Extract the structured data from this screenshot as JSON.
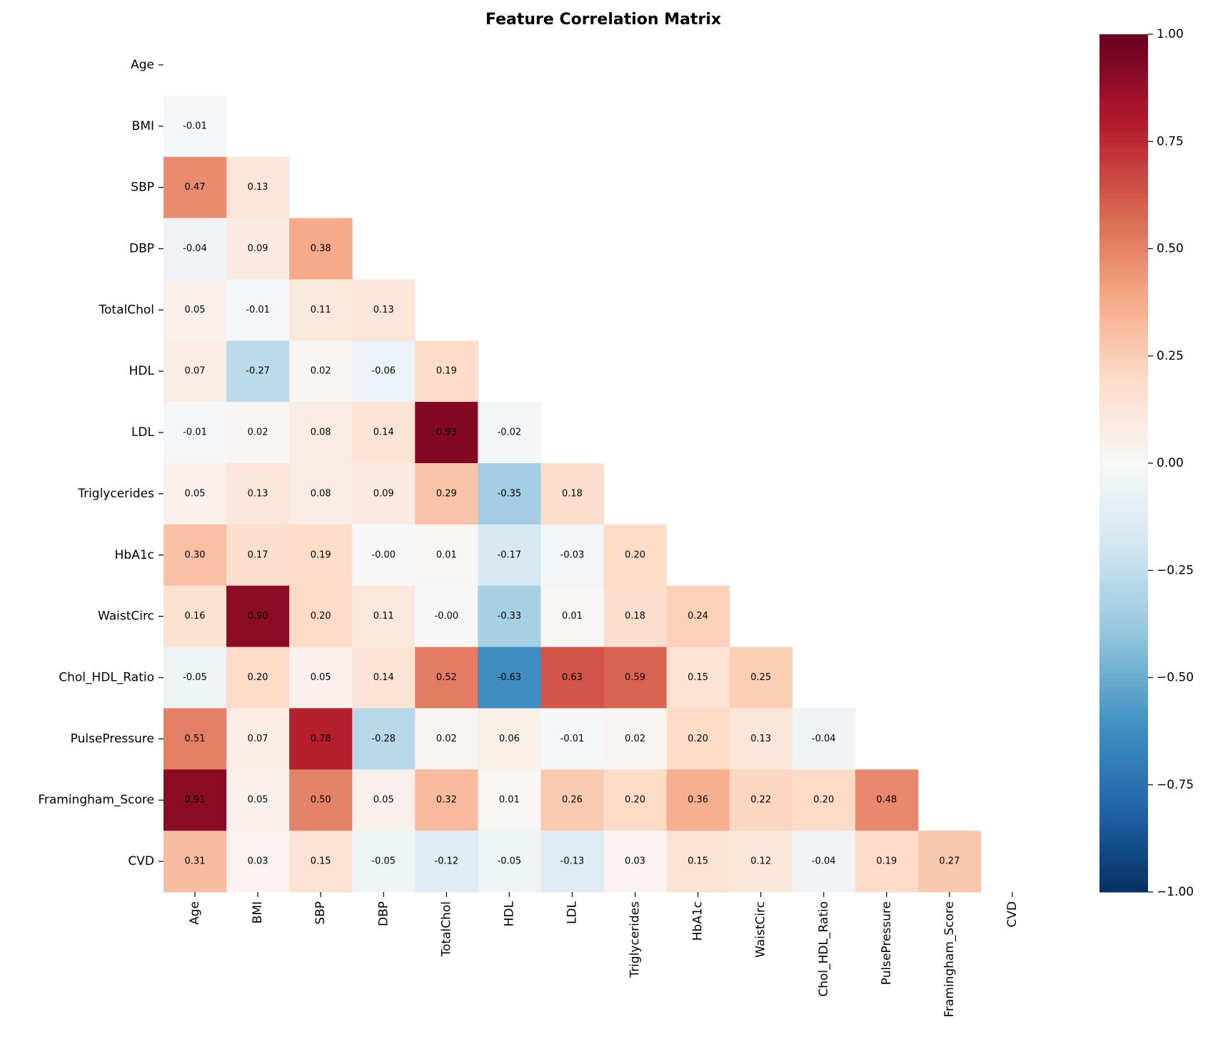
{
  "chart_data": {
    "type": "heatmap",
    "title": "Feature Correlation Matrix",
    "x": [
      "Age",
      "BMI",
      "SBP",
      "DBP",
      "TotalChol",
      "HDL",
      "LDL",
      "Triglycerides",
      "HbA1c",
      "WaistCirc",
      "Chol_HDL_Ratio",
      "PulsePressure",
      "Framingham_Score",
      "CVD"
    ],
    "y": [
      "Age",
      "BMI",
      "SBP",
      "DBP",
      "TotalChol",
      "HDL",
      "LDL",
      "Triglycerides",
      "HbA1c",
      "WaistCirc",
      "Chol_HDL_Ratio",
      "PulsePressure",
      "Framingham_Score",
      "CVD"
    ],
    "z": [
      [
        null,
        null,
        null,
        null,
        null,
        null,
        null,
        null,
        null,
        null,
        null,
        null,
        null,
        null
      ],
      [
        -0.01,
        null,
        null,
        null,
        null,
        null,
        null,
        null,
        null,
        null,
        null,
        null,
        null,
        null
      ],
      [
        0.47,
        0.13,
        null,
        null,
        null,
        null,
        null,
        null,
        null,
        null,
        null,
        null,
        null,
        null
      ],
      [
        -0.04,
        0.09,
        0.38,
        null,
        null,
        null,
        null,
        null,
        null,
        null,
        null,
        null,
        null,
        null
      ],
      [
        0.05,
        -0.01,
        0.11,
        0.13,
        null,
        null,
        null,
        null,
        null,
        null,
        null,
        null,
        null,
        null
      ],
      [
        0.07,
        -0.27,
        0.02,
        -0.06,
        0.19,
        null,
        null,
        null,
        null,
        null,
        null,
        null,
        null,
        null
      ],
      [
        -0.01,
        0.02,
        0.08,
        0.14,
        0.93,
        -0.02,
        null,
        null,
        null,
        null,
        null,
        null,
        null,
        null
      ],
      [
        0.05,
        0.13,
        0.08,
        0.09,
        0.29,
        -0.35,
        0.18,
        null,
        null,
        null,
        null,
        null,
        null,
        null
      ],
      [
        0.3,
        0.17,
        0.19,
        0,
        0.01,
        -0.17,
        -0.03,
        0.2,
        null,
        null,
        null,
        null,
        null,
        null
      ],
      [
        0.16,
        0.9,
        0.2,
        0.11,
        0,
        -0.33,
        0.01,
        0.18,
        0.24,
        null,
        null,
        null,
        null,
        null
      ],
      [
        -0.05,
        0.2,
        0.05,
        0.14,
        0.52,
        -0.63,
        0.63,
        0.59,
        0.15,
        0.25,
        null,
        null,
        null,
        null
      ],
      [
        0.51,
        0.07,
        0.78,
        -0.28,
        0.02,
        0.06,
        -0.01,
        0.02,
        0.2,
        0.13,
        -0.04,
        null,
        null,
        null
      ],
      [
        0.91,
        0.05,
        0.5,
        0.05,
        0.32,
        0.01,
        0.26,
        0.2,
        0.36,
        0.22,
        0.2,
        0.48,
        null,
        null
      ],
      [
        0.31,
        0.03,
        0.15,
        -0.05,
        -0.12,
        -0.05,
        -0.13,
        0.03,
        0.15,
        0.12,
        -0.04,
        0.19,
        0.27,
        null
      ]
    ],
    "value_labels": [
      [
        null,
        null,
        null,
        null,
        null,
        null,
        null,
        null,
        null,
        null,
        null,
        null,
        null,
        null
      ],
      [
        "-0.01",
        null,
        null,
        null,
        null,
        null,
        null,
        null,
        null,
        null,
        null,
        null,
        null,
        null
      ],
      [
        "0.47",
        "0.13",
        null,
        null,
        null,
        null,
        null,
        null,
        null,
        null,
        null,
        null,
        null,
        null
      ],
      [
        "-0.04",
        "0.09",
        "0.38",
        null,
        null,
        null,
        null,
        null,
        null,
        null,
        null,
        null,
        null,
        null
      ],
      [
        "0.05",
        "-0.01",
        "0.11",
        "0.13",
        null,
        null,
        null,
        null,
        null,
        null,
        null,
        null,
        null,
        null
      ],
      [
        "0.07",
        "-0.27",
        "0.02",
        "-0.06",
        "0.19",
        null,
        null,
        null,
        null,
        null,
        null,
        null,
        null,
        null
      ],
      [
        "-0.01",
        "0.02",
        "0.08",
        "0.14",
        "0.93",
        "-0.02",
        null,
        null,
        null,
        null,
        null,
        null,
        null,
        null
      ],
      [
        "0.05",
        "0.13",
        "0.08",
        "0.09",
        "0.29",
        "-0.35",
        "0.18",
        null,
        null,
        null,
        null,
        null,
        null,
        null
      ],
      [
        "0.30",
        "0.17",
        "0.19",
        "-0.00",
        "0.01",
        "-0.17",
        "-0.03",
        "0.20",
        null,
        null,
        null,
        null,
        null,
        null
      ],
      [
        "0.16",
        "0.90",
        "0.20",
        "0.11",
        "-0.00",
        "-0.33",
        "0.01",
        "0.18",
        "0.24",
        null,
        null,
        null,
        null,
        null
      ],
      [
        "-0.05",
        "0.20",
        "0.05",
        "0.14",
        "0.52",
        "-0.63",
        "0.63",
        "0.59",
        "0.15",
        "0.25",
        null,
        null,
        null,
        null
      ],
      [
        "0.51",
        "0.07",
        "0.78",
        "-0.28",
        "0.02",
        "0.06",
        "-0.01",
        "0.02",
        "0.20",
        "0.13",
        "-0.04",
        null,
        null,
        null
      ],
      [
        "0.91",
        "0.05",
        "0.50",
        "0.05",
        "0.32",
        "0.01",
        "0.26",
        "0.20",
        "0.36",
        "0.22",
        "0.20",
        "0.48",
        null,
        null
      ],
      [
        "0.31",
        "0.03",
        "0.15",
        "-0.05",
        "-0.12",
        "-0.05",
        "-0.13",
        "0.03",
        "0.15",
        "0.12",
        "-0.04",
        "0.19",
        "0.27",
        null
      ]
    ],
    "colormap": "RdBu_r",
    "zlim": [
      -1,
      1
    ],
    "zticks": [
      {
        "value": -1,
        "label": "−1.00"
      },
      {
        "value": -0.75,
        "label": "−0.75"
      },
      {
        "value": -0.5,
        "label": "−0.50"
      },
      {
        "value": -0.25,
        "label": "−0.25"
      },
      {
        "value": 0,
        "label": "0.00"
      },
      {
        "value": 0.25,
        "label": "0.25"
      },
      {
        "value": 0.5,
        "label": "0.50"
      },
      {
        "value": 0.75,
        "label": "0.75"
      },
      {
        "value": 1,
        "label": "1.00"
      }
    ]
  }
}
